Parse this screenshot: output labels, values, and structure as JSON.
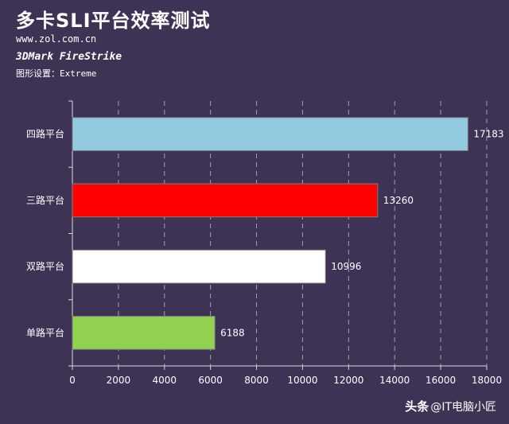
{
  "header": {
    "title": "多卡SLI平台效率测试",
    "url": "www.zol.com.cn",
    "benchmark": "3DMark FireStrike",
    "setting": "图形设置：Extreme"
  },
  "watermark": {
    "brand": "头条",
    "handle": "@IT电脑小匠"
  },
  "chart_data": {
    "type": "bar",
    "orientation": "horizontal",
    "categories": [
      "四路平台",
      "三路平台",
      "双路平台",
      "单路平台"
    ],
    "values": [
      17183,
      13260,
      10996,
      6188
    ],
    "colors": [
      "#92cbdf",
      "#ff0000",
      "#ffffff",
      "#92d050"
    ],
    "xlim": [
      0,
      18000
    ],
    "xticks": [
      0,
      2000,
      4000,
      6000,
      8000,
      10000,
      12000,
      14000,
      16000,
      18000
    ],
    "grid": "vertical-dashed",
    "legend": "none"
  }
}
